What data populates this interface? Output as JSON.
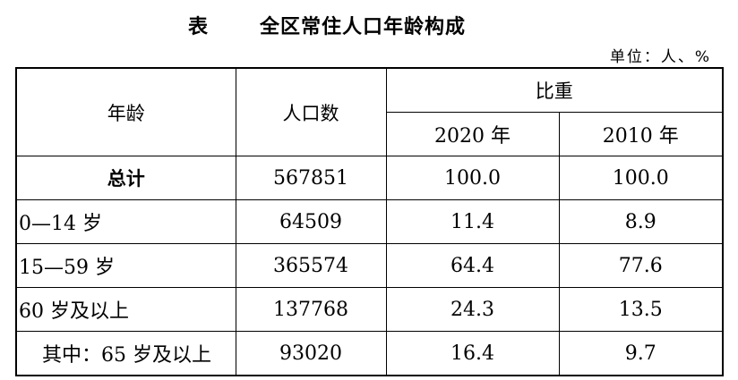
{
  "title": {
    "prefix": "表",
    "text": "全区常住人口年龄构成"
  },
  "unit": "单位：人、%",
  "table": {
    "headers": {
      "age": "年龄",
      "population": "人口数",
      "proportion": "比重",
      "year_2020": "2020 年",
      "year_2010": "2010 年"
    },
    "rows": [
      {
        "age": "总计",
        "population": "567851",
        "y2020": "100.0",
        "y2010": "100.0"
      },
      {
        "age": "0—14 岁",
        "population": "64509",
        "y2020": "11.4",
        "y2010": "8.9"
      },
      {
        "age": "15—59 岁",
        "population": "365574",
        "y2020": "64.4",
        "y2010": "77.6"
      },
      {
        "age": "60 岁及以上",
        "population": "137768",
        "y2020": "24.3",
        "y2010": "13.5"
      },
      {
        "age": "其中：65 岁及以上",
        "population": "93020",
        "y2020": "16.4",
        "y2010": "9.7"
      }
    ]
  }
}
